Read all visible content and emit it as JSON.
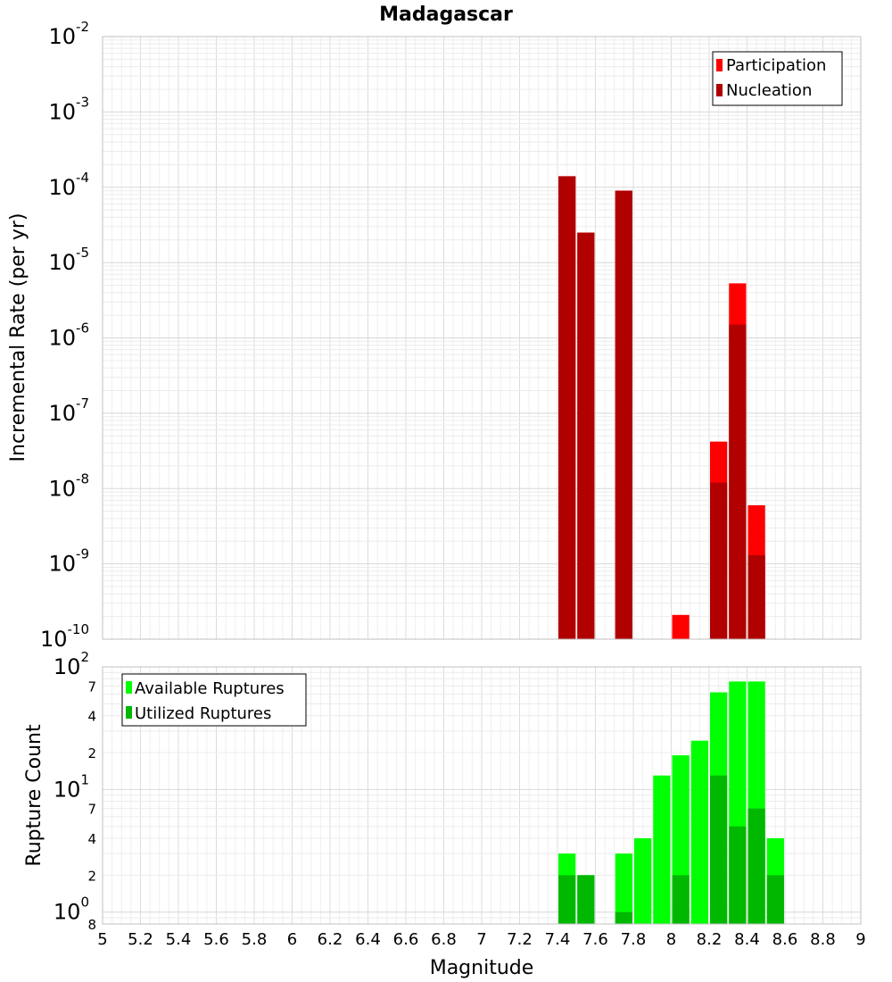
{
  "chart_data": [
    {
      "type": "bar",
      "title": "Madagascar",
      "ylabel": "Incremental Rate (per yr)",
      "xlabel": "",
      "yscale": "log",
      "ylim": [
        1e-10,
        0.01
      ],
      "xlim": [
        5,
        9
      ],
      "bar_width": 0.1,
      "mode": "overlaid",
      "grid": true,
      "legend_position": "top-right",
      "yticks": [
        {
          "base": "10",
          "exp": "-2"
        },
        {
          "base": "10",
          "exp": "-3"
        },
        {
          "base": "10",
          "exp": "-4"
        },
        {
          "base": "10",
          "exp": "-5"
        },
        {
          "base": "10",
          "exp": "-6"
        },
        {
          "base": "10",
          "exp": "-7"
        },
        {
          "base": "10",
          "exp": "-8"
        },
        {
          "base": "10",
          "exp": "-9"
        },
        {
          "base": "10",
          "exp": "-10"
        }
      ],
      "series": [
        {
          "name": "Participation",
          "color": "#ff0000",
          "x": [
            7.45,
            7.55,
            7.75,
            8.05,
            8.25,
            8.35,
            8.45
          ],
          "values": [
            0.00014,
            2.5e-05,
            9e-05,
            2.1e-10,
            4.2e-08,
            5.3e-06,
            6e-09
          ]
        },
        {
          "name": "Nucleation",
          "color": "#b00000",
          "x": [
            7.45,
            7.55,
            7.75,
            8.25,
            8.35,
            8.45
          ],
          "values": [
            0.00014,
            2.5e-05,
            9e-05,
            1.2e-08,
            1.5e-06,
            1.3e-09
          ]
        }
      ]
    },
    {
      "type": "bar",
      "title": "",
      "ylabel": "Rupture Count",
      "xlabel": "Magnitude",
      "yscale": "log",
      "ylim": [
        0.8,
        100
      ],
      "xlim": [
        5,
        9
      ],
      "bar_width": 0.1,
      "mode": "overlaid",
      "grid": true,
      "legend_position": "top-left",
      "y_major_ticks": [
        {
          "value": 1,
          "base": "10",
          "exp": "0"
        },
        {
          "value": 10,
          "base": "10",
          "exp": "1"
        },
        {
          "value": 100,
          "base": "10",
          "exp": "2"
        }
      ],
      "y_minor_ticks": [
        {
          "value": 0.8,
          "label": "8"
        },
        {
          "value": 2,
          "label": "2"
        },
        {
          "value": 4,
          "label": "4"
        },
        {
          "value": 7,
          "label": "7"
        },
        {
          "value": 20,
          "label": "2"
        },
        {
          "value": 40,
          "label": "4"
        },
        {
          "value": 70,
          "label": "7"
        }
      ],
      "x_ticks": [
        "5",
        "5.2",
        "5.4",
        "5.6",
        "5.8",
        "6",
        "6.2",
        "6.4",
        "6.6",
        "6.8",
        "7",
        "7.2",
        "7.4",
        "7.6",
        "7.8",
        "8",
        "8.2",
        "8.4",
        "8.6",
        "8.8",
        "9"
      ],
      "series": [
        {
          "name": "Available Ruptures",
          "color": "#00ff00",
          "x": [
            7.45,
            7.55,
            7.75,
            7.85,
            7.95,
            8.05,
            8.15,
            8.25,
            8.35,
            8.45,
            8.55
          ],
          "values": [
            3,
            2,
            3,
            4,
            13,
            19,
            25,
            62,
            76,
            76,
            4
          ]
        },
        {
          "name": "Utilized Ruptures",
          "color": "#00b800",
          "x": [
            7.45,
            7.55,
            7.75,
            8.05,
            8.25,
            8.35,
            8.45,
            8.55
          ],
          "values": [
            2,
            2,
            1,
            2,
            13,
            5,
            7,
            2
          ]
        }
      ]
    }
  ]
}
